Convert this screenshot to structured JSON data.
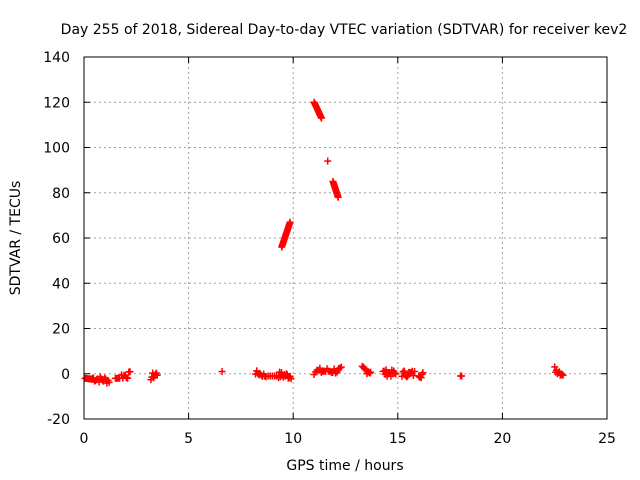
{
  "chart_data": {
    "type": "scatter",
    "title": "Day 255 of 2018, Sidereal Day-to-day VTEC variation (SDTVAR) for receiver kev2",
    "xlabel": "GPS time / hours",
    "ylabel": "SDTVAR / TECUs",
    "xlim": [
      0,
      25
    ],
    "ylim": [
      -20,
      140
    ],
    "xticks": [
      0,
      5,
      10,
      15,
      20,
      25
    ],
    "yticks": [
      -20,
      0,
      20,
      40,
      60,
      80,
      100,
      120,
      140
    ],
    "grid": true,
    "marker": "+",
    "color": "#ff0000",
    "segments": [
      {
        "x": [
          0.05,
          0.45
        ],
        "y": [
          -2,
          -2.5
        ],
        "n": 10
      },
      {
        "x": [
          0.4,
          1.2
        ],
        "y": [
          -2,
          -3
        ],
        "n": 16,
        "jitter": 1.5
      },
      {
        "x": [
          1.5,
          1.7
        ],
        "y": [
          -2,
          -2
        ],
        "n": 4
      },
      {
        "x": [
          1.8,
          2.2
        ],
        "y": [
          -1,
          -0.5
        ],
        "n": 8,
        "jitter": 1.5
      },
      {
        "x": [
          3.2,
          3.5
        ],
        "y": [
          -1.5,
          0
        ],
        "n": 8,
        "jitter": 1.5
      },
      {
        "x": [
          6.6,
          6.6
        ],
        "y": [
          1,
          1
        ],
        "n": 1
      },
      {
        "x": [
          8.2,
          8.7
        ],
        "y": [
          0.5,
          -1
        ],
        "n": 10,
        "jitter": 1
      },
      {
        "x": [
          8.8,
          9.3
        ],
        "y": [
          -1,
          -1
        ],
        "n": 6
      },
      {
        "x": [
          9.3,
          9.9
        ],
        "y": [
          -0.5,
          -1
        ],
        "n": 14,
        "jitter": 1.5
      },
      {
        "x": [
          9.45,
          9.85
        ],
        "y": [
          56,
          67
        ],
        "n": 20
      },
      {
        "x": [
          11.0,
          11.35
        ],
        "y": [
          120,
          113
        ],
        "n": 16
      },
      {
        "x": [
          11.65,
          11.65
        ],
        "y": [
          94,
          94
        ],
        "n": 1
      },
      {
        "x": [
          11.9,
          12.15
        ],
        "y": [
          85,
          78
        ],
        "n": 14
      },
      {
        "x": [
          11.0,
          12.3
        ],
        "y": [
          1,
          1.5
        ],
        "n": 20,
        "jitter": 1.5
      },
      {
        "x": [
          13.3,
          13.7
        ],
        "y": [
          2,
          1
        ],
        "n": 10,
        "jitter": 1.5
      },
      {
        "x": [
          14.3,
          14.9
        ],
        "y": [
          0.5,
          0
        ],
        "n": 14,
        "jitter": 1.5
      },
      {
        "x": [
          15.2,
          15.8
        ],
        "y": [
          0,
          0
        ],
        "n": 12,
        "jitter": 1.5
      },
      {
        "x": [
          16.0,
          16.2
        ],
        "y": [
          0,
          -0.5
        ],
        "n": 6,
        "jitter": 1.5
      },
      {
        "x": [
          18.0,
          18.05
        ],
        "y": [
          -1,
          -1
        ],
        "n": 2
      },
      {
        "x": [
          22.5,
          22.9
        ],
        "y": [
          2,
          0
        ],
        "n": 10,
        "jitter": 1.5
      }
    ]
  }
}
